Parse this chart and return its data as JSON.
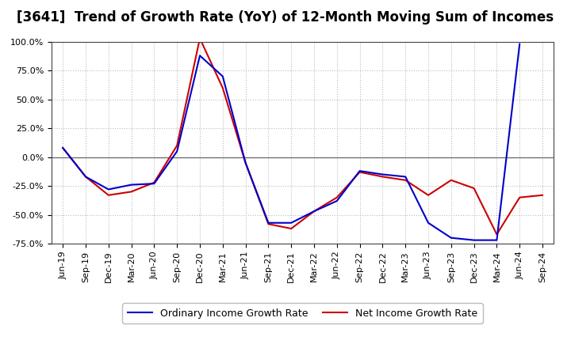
{
  "title": "[3641]  Trend of Growth Rate (YoY) of 12-Month Moving Sum of Incomes",
  "x_labels": [
    "Jun-19",
    "Sep-19",
    "Dec-19",
    "Mar-20",
    "Jun-20",
    "Sep-20",
    "Dec-20",
    "Mar-21",
    "Jun-21",
    "Sep-21",
    "Dec-21",
    "Mar-22",
    "Jun-22",
    "Sep-22",
    "Dec-22",
    "Mar-23",
    "Jun-23",
    "Sep-23",
    "Dec-23",
    "Mar-24",
    "Jun-24",
    "Sep-24"
  ],
  "ordinary_income": [
    8.0,
    -17.0,
    -28.0,
    -24.0,
    -23.0,
    5.0,
    88.0,
    70.0,
    -5.0,
    -57.0,
    -57.0,
    -47.0,
    -38.0,
    -12.0,
    -15.0,
    -17.0,
    -57.0,
    -70.0,
    -72.0,
    -72.0,
    98.0,
    null
  ],
  "net_income": [
    8.0,
    -17.0,
    -33.0,
    -30.0,
    -22.0,
    10.0,
    103.0,
    60.0,
    -5.0,
    -58.0,
    -62.0,
    -47.0,
    -35.0,
    -13.0,
    -17.0,
    -20.0,
    -33.0,
    -20.0,
    -27.0,
    -67.0,
    -35.0,
    -33.0
  ],
  "ordinary_color": "#0000cc",
  "net_color": "#cc0000",
  "ylim": [
    -75.0,
    100.0
  ],
  "yticks": [
    -75.0,
    -50.0,
    -25.0,
    0.0,
    25.0,
    50.0,
    75.0,
    100.0
  ],
  "ytick_labels": [
    "-75.0%",
    "-50.0%",
    "-25.0%",
    "0.0%",
    "25.0%",
    "50.0%",
    "75.0%",
    "100.0%"
  ],
  "legend_ordinary": "Ordinary Income Growth Rate",
  "legend_net": "Net Income Growth Rate",
  "bg_color": "#ffffff",
  "plot_bg_color": "#ffffff",
  "grid_color": "#bbbbbb",
  "title_fontsize": 12,
  "axis_fontsize": 8,
  "legend_fontsize": 9,
  "line_width": 1.5
}
